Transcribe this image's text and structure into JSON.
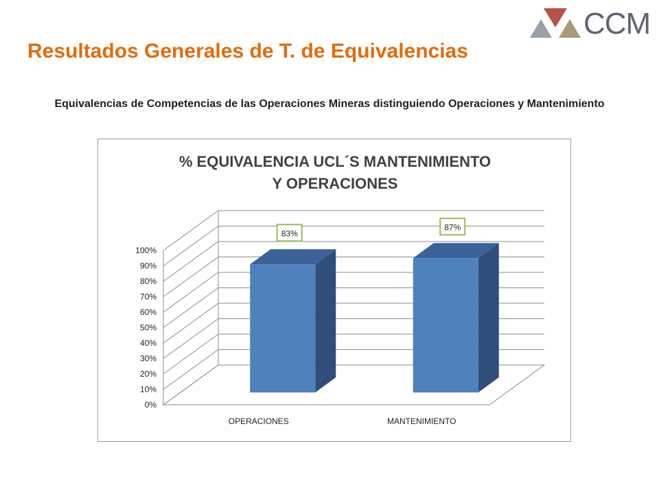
{
  "slide": {
    "title": "Resultados Generales de T. de Equivalencias",
    "subtitle": "Equivalencias de Competencias de las Operaciones Mineras distinguiendo Operaciones y Mantenimiento"
  },
  "logo": {
    "text": "CCM",
    "colors": [
      "#9aa0aa",
      "#b5534a",
      "#a89a7a",
      "#5f6470"
    ]
  },
  "chart_data": {
    "type": "bar",
    "title": "% EQUIVALENCIA UCL´S MANTENIMIENTO Y OPERACIONES",
    "categories": [
      "OPERACIONES",
      "MANTENIMIENTO"
    ],
    "values": [
      83,
      87
    ],
    "data_labels": [
      "83%",
      "87%"
    ],
    "ylim": [
      0,
      100
    ],
    "yticks": [
      "0%",
      "10%",
      "20%",
      "30%",
      "40%",
      "50%",
      "60%",
      "70%",
      "80%",
      "90%",
      "100%"
    ],
    "grid": true,
    "three_d": true,
    "bar_color": "#4f81bd",
    "label_border_color": "#9bbb59"
  }
}
